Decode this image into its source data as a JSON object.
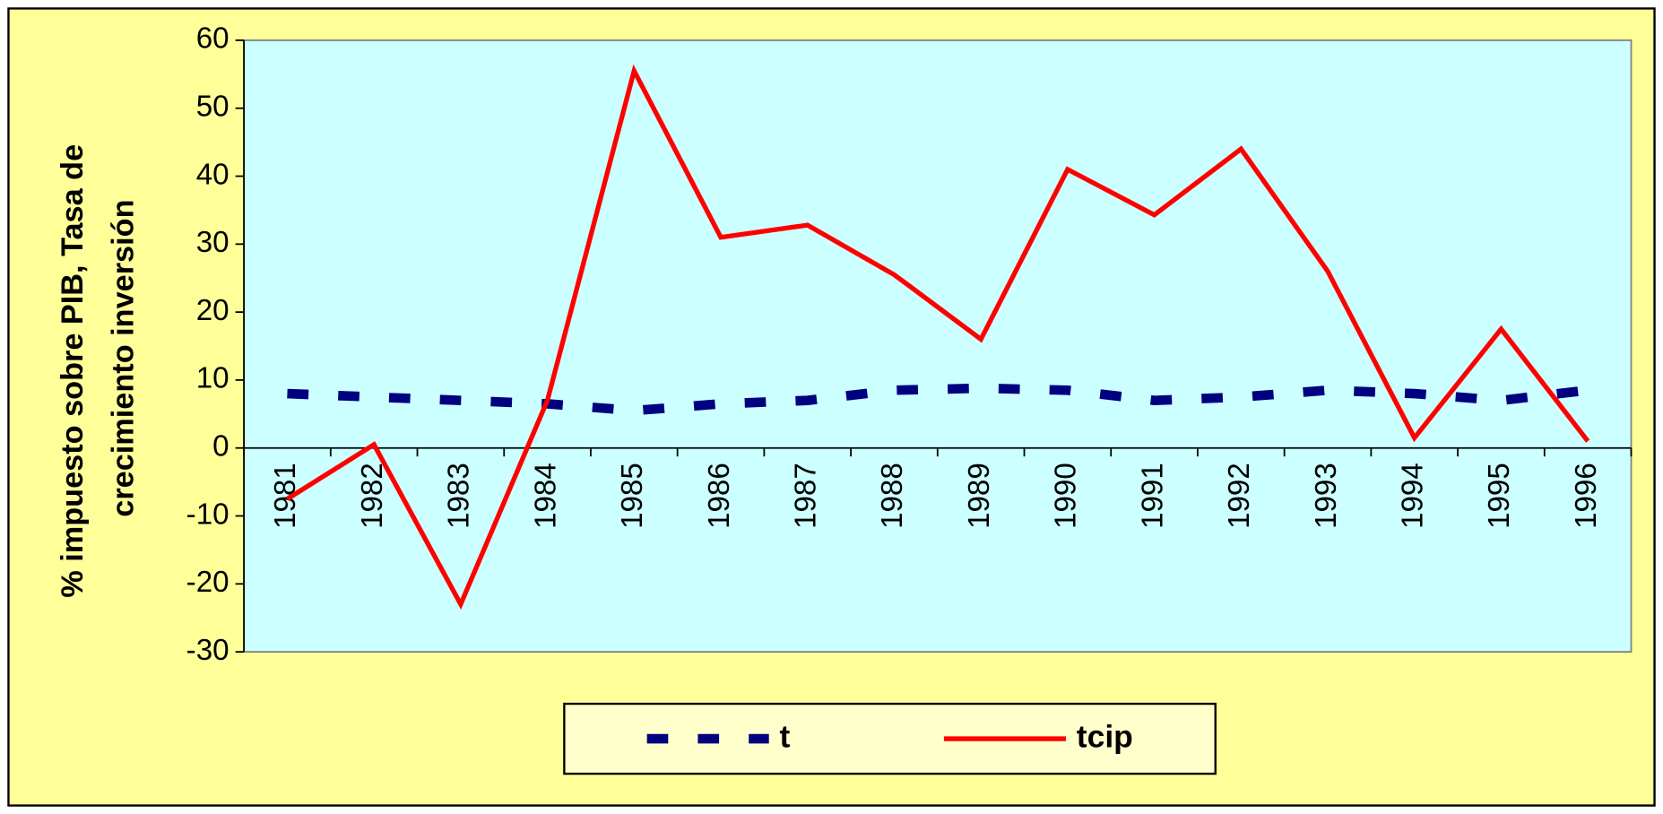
{
  "chart_data": {
    "type": "line",
    "y_label": [
      "% impuesto sobre PIB, Tasa de",
      "crecimiento inversión"
    ],
    "categories": [
      "1981",
      "1982",
      "1983",
      "1984",
      "1985",
      "1986",
      "1987",
      "1988",
      "1989",
      "1990",
      "1991",
      "1992",
      "1993",
      "1994",
      "1995",
      "1996"
    ],
    "series": [
      {
        "name": "t",
        "color": "#000080",
        "style": "dashed",
        "values": [
          8,
          7.5,
          7,
          6.5,
          5.5,
          6.5,
          7,
          8.5,
          8.8,
          8.5,
          7,
          7.5,
          8.5,
          8,
          7,
          8.5
        ]
      },
      {
        "name": "tcip",
        "color": "#ff0000",
        "style": "solid",
        "values": [
          -7.5,
          0.5,
          -23,
          7,
          55.5,
          31,
          32.8,
          25.5,
          16,
          41,
          34.3,
          44,
          26,
          1.5,
          17.5,
          1
        ]
      }
    ],
    "ylim": [
      -30,
      60
    ],
    "yticks": [
      -30,
      -20,
      -10,
      0,
      10,
      20,
      30,
      40,
      50,
      60
    ],
    "legend": "bottom"
  }
}
